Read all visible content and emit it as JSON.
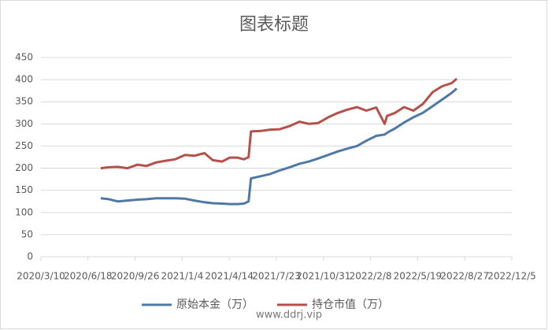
{
  "chart_data": {
    "type": "line",
    "title": "图表标题",
    "watermark": "www.ddrj.vip",
    "x": [
      "2020/7/15",
      "2020/8/1",
      "2020/8/20",
      "2020/9/10",
      "2020/10/1",
      "2020/10/20",
      "2020/11/10",
      "2020/12/1",
      "2020/12/20",
      "2021/1/10",
      "2021/1/30",
      "2021/2/20",
      "2021/3/10",
      "2021/3/30",
      "2021/4/15",
      "2021/5/1",
      "2021/5/15",
      "2021/5/25",
      "2021/5/30",
      "2021/6/20",
      "2021/7/10",
      "2021/7/30",
      "2021/8/20",
      "2021/9/10",
      "2021/9/30",
      "2021/10/20",
      "2021/11/10",
      "2021/12/1",
      "2021/12/20",
      "2022/1/10",
      "2022/1/30",
      "2022/2/20",
      "2022/3/10",
      "2022/3/15",
      "2022/4/1",
      "2022/4/20",
      "2022/5/10",
      "2022/5/30",
      "2022/6/20",
      "2022/7/10",
      "2022/7/30",
      "2022/8/10"
    ],
    "series": [
      {
        "name": "原始本金（万）",
        "color": "#4e79a7",
        "values": [
          132,
          130,
          125,
          127,
          129,
          130,
          132,
          132,
          132,
          131,
          127,
          123,
          121,
          120,
          119,
          119,
          120,
          125,
          177,
          182,
          187,
          195,
          202,
          210,
          215,
          222,
          230,
          238,
          244,
          250,
          262,
          273,
          276,
          280,
          290,
          303,
          315,
          325,
          340,
          355,
          370,
          380
        ]
      },
      {
        "name": "持仓市值（万）",
        "color": "#b5504a",
        "values": [
          200,
          202,
          203,
          200,
          208,
          205,
          213,
          217,
          220,
          230,
          228,
          234,
          218,
          215,
          224,
          224,
          220,
          225,
          283,
          284,
          287,
          288,
          295,
          305,
          300,
          302,
          315,
          325,
          332,
          338,
          330,
          337,
          300,
          318,
          325,
          338,
          330,
          345,
          372,
          385,
          392,
          402
        ]
      }
    ],
    "xlim": [
      "2020/3/10",
      "2022/12/5"
    ],
    "xticks": [
      "2020/3/10",
      "2020/6/18",
      "2020/9/26",
      "2021/1/4",
      "2021/4/14",
      "2021/7/23",
      "2021/10/31",
      "2022/2/8",
      "2022/5/19",
      "2022/8/27",
      "2022/12/5"
    ],
    "ylim": [
      0,
      450
    ],
    "yticks": [
      0,
      50,
      100,
      150,
      200,
      250,
      300,
      350,
      400,
      450
    ],
    "grid": true,
    "legend": "bottom"
  }
}
